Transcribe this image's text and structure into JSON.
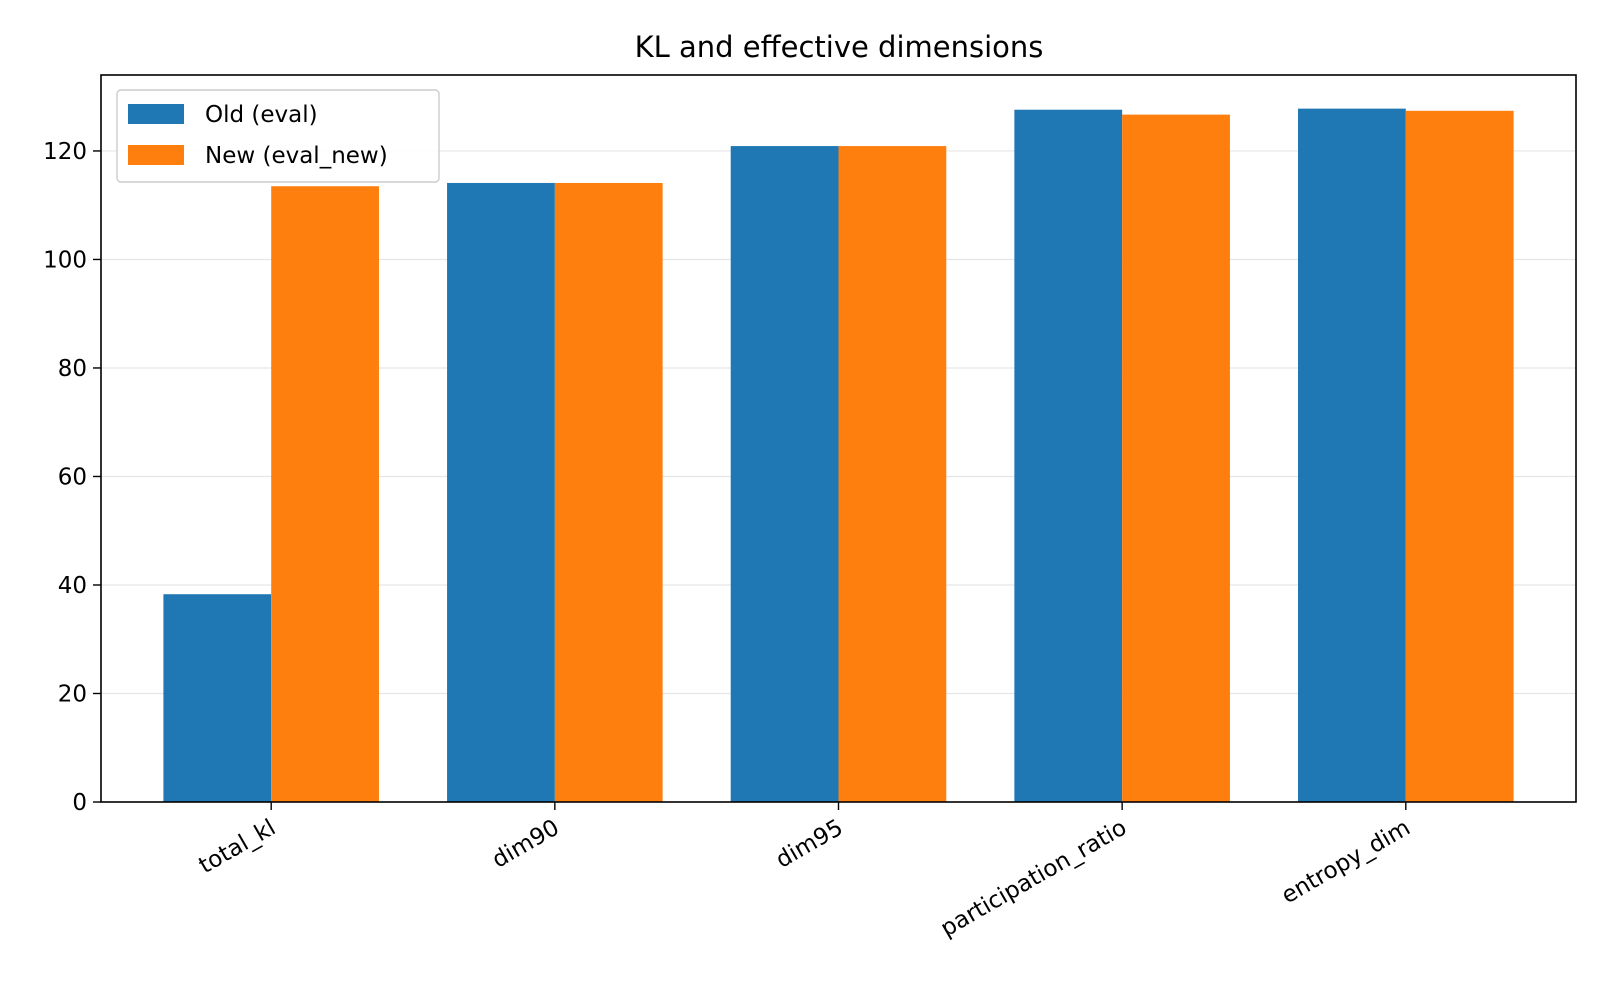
{
  "chart_data": {
    "type": "bar",
    "title": "KL and effective dimensions",
    "xlabel": "",
    "ylabel": "",
    "categories": [
      "total_kl",
      "dim90",
      "dim95",
      "participation_ratio",
      "entropy_dim"
    ],
    "series": [
      {
        "name": "Old (eval)",
        "color": "#1f77b4",
        "values": [
          38.3,
          114.1,
          120.9,
          127.6,
          127.8
        ]
      },
      {
        "name": "New (eval_new)",
        "color": "#ff7f0e",
        "values": [
          113.5,
          114.1,
          120.9,
          126.7,
          127.4
        ]
      }
    ],
    "ylim": [
      0,
      134
    ],
    "yticks": [
      0,
      20,
      40,
      60,
      80,
      100,
      120
    ],
    "grid": "y",
    "legend": "top-left"
  }
}
